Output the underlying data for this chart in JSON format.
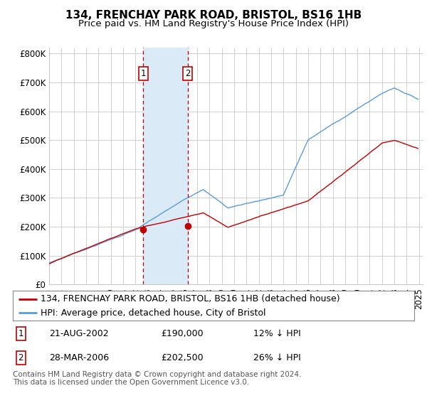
{
  "title": "134, FRENCHAY PARK ROAD, BRISTOL, BS16 1HB",
  "subtitle": "Price paid vs. HM Land Registry's House Price Index (HPI)",
  "ylabel_ticks": [
    "£0",
    "£100K",
    "£200K",
    "£300K",
    "£400K",
    "£500K",
    "£600K",
    "£700K",
    "£800K"
  ],
  "ylim": [
    0,
    820000
  ],
  "xlim_start": 1995,
  "xlim_end": 2025,
  "purchase1_date": 2002.64,
  "purchase1_price": 190000,
  "purchase2_date": 2006.24,
  "purchase2_price": 202500,
  "hpi_color": "#5b9bd5",
  "price_color": "#c00000",
  "shaded_color": "#daeaf7",
  "annotation_box_color": "#c00000",
  "grid_color": "#c8c8c8",
  "background_color": "#ffffff",
  "legend_label_price": "134, FRENCHAY PARK ROAD, BRISTOL, BS16 1HB (detached house)",
  "legend_label_hpi": "HPI: Average price, detached house, City of Bristol",
  "table_row1": [
    "1",
    "21-AUG-2002",
    "£190,000",
    "12% ↓ HPI"
  ],
  "table_row2": [
    "2",
    "28-MAR-2006",
    "£202,500",
    "26% ↓ HPI"
  ],
  "footer1": "Contains HM Land Registry data © Crown copyright and database right 2024.",
  "footer2": "This data is licensed under the Open Government Licence v3.0.",
  "title_fontsize": 11,
  "subtitle_fontsize": 9.5,
  "tick_fontsize": 8.5,
  "legend_fontsize": 9,
  "table_fontsize": 9,
  "footer_fontsize": 7.5
}
